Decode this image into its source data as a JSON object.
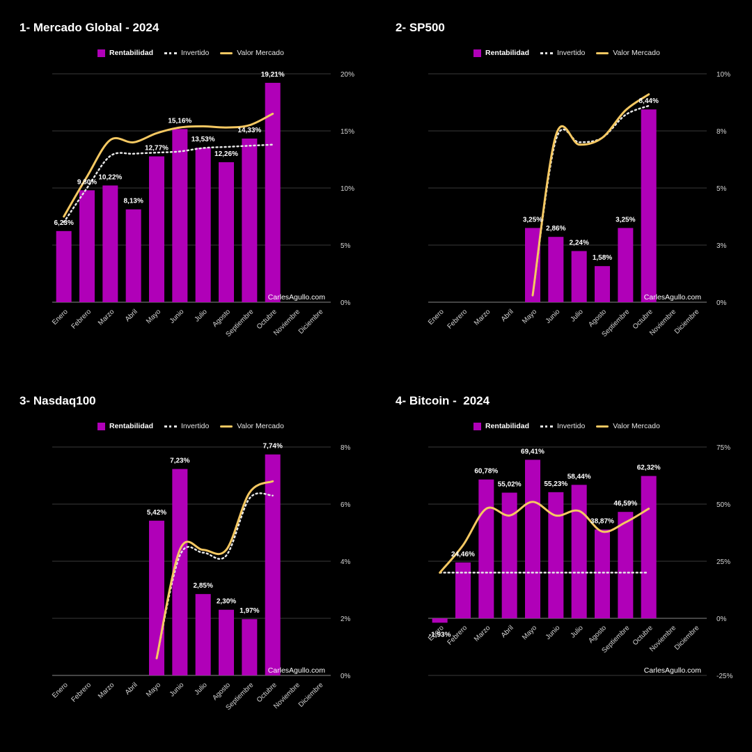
{
  "months": [
    "Enero",
    "Febrero",
    "Marzo",
    "Abril",
    "Mayo",
    "Junio",
    "Julio",
    "Agosto",
    "Septiembre",
    "Octubre",
    "Noviembre",
    "Diciembre"
  ],
  "colors": {
    "bar": "#b000b8",
    "market_line": "#f5c862",
    "invested_line": "#e6e6e6",
    "grid": "#3a3a3a",
    "text": "#ffffff",
    "axis_text": "#d6d6d6"
  },
  "charts": [
    {
      "id": "global",
      "title": "1- Mercado Global - 2024",
      "legend": {
        "bar": "Rentabilidad",
        "invested": "Invertido",
        "market": "Valor Mercado"
      },
      "watermark": "CarlesAgullo.com",
      "chart_data": {
        "type": "bar",
        "categories": [
          "Enero",
          "Febrero",
          "Marzo",
          "Abril",
          "Mayo",
          "Junio",
          "Julio",
          "Agosto",
          "Septiembre",
          "Octubre",
          "Noviembre",
          "Diciembre"
        ],
        "series": [
          {
            "name": "Rentabilidad",
            "values": [
              6.23,
              9.8,
              10.22,
              8.13,
              12.77,
              15.16,
              13.53,
              12.26,
              14.33,
              19.21,
              null,
              null
            ],
            "labels": [
              "6,23%",
              "9,80%",
              "10,22%",
              "8,13%",
              "12,77%",
              "15,16%",
              "13,53%",
              "12,26%",
              "14,33%",
              "19,21%",
              "",
              ""
            ]
          },
          {
            "name": "Invertido",
            "values": [
              7.0,
              10.0,
              12.8,
              13.0,
              13.1,
              13.2,
              13.5,
              13.6,
              13.7,
              13.8,
              null,
              null
            ]
          },
          {
            "name": "Valor Mercado",
            "values": [
              7.5,
              11.0,
              14.2,
              14.0,
              14.8,
              15.3,
              15.4,
              15.3,
              15.5,
              16.5,
              null,
              null
            ]
          }
        ],
        "ylim": [
          0,
          20
        ],
        "yticks": [
          0,
          5,
          10,
          15,
          20
        ],
        "ytick_labels": [
          "0%",
          "5%",
          "10%",
          "15%",
          "20%"
        ],
        "grid": true,
        "legend_position": "top"
      }
    },
    {
      "id": "sp500",
      "title": "2- SP500",
      "legend": {
        "bar": "Rentabilidad",
        "invested": "Invertido",
        "market": "Valor Mercado"
      },
      "watermark": "CarlesAgullo.com",
      "chart_data": {
        "type": "bar",
        "categories": [
          "Enero",
          "Febrero",
          "Marzo",
          "Abril",
          "Mayo",
          "Junio",
          "Julio",
          "Agosto",
          "Septiembre",
          "Octubre",
          "Noviembre",
          "Diciembre"
        ],
        "series": [
          {
            "name": "Rentabilidad",
            "values": [
              null,
              null,
              null,
              null,
              3.25,
              2.86,
              2.24,
              1.58,
              3.25,
              8.44,
              null,
              null
            ],
            "labels": [
              "",
              "",
              "",
              "",
              "3,25%",
              "2,86%",
              "2,24%",
              "1,58%",
              "3,25%",
              "8,44%",
              "",
              ""
            ]
          },
          {
            "name": "Invertido",
            "values": [
              null,
              null,
              null,
              null,
              0.3,
              7.1,
              7.0,
              7.2,
              8.2,
              8.6,
              null,
              null
            ]
          },
          {
            "name": "Valor Mercado",
            "values": [
              null,
              null,
              null,
              null,
              0.3,
              7.3,
              6.9,
              7.2,
              8.4,
              9.1,
              null,
              null
            ]
          }
        ],
        "ylim": [
          0,
          10
        ],
        "yticks": [
          0,
          2.5,
          5,
          7.5,
          10
        ],
        "ytick_labels": [
          "0%",
          "3%",
          "5%",
          "8%",
          "10%"
        ],
        "grid": true,
        "legend_position": "top"
      }
    },
    {
      "id": "nasdaq",
      "title": "3- Nasdaq100",
      "legend": {
        "bar": "Rentabilidad",
        "invested": "Invertido",
        "market": "Valor Mercado"
      },
      "watermark": "CarlesAgullo.com",
      "chart_data": {
        "type": "bar",
        "categories": [
          "Enero",
          "Febrero",
          "Marzo",
          "Abril",
          "Mayo",
          "Junio",
          "Julio",
          "Agosto",
          "Septiembre",
          "Octubre",
          "Noviembre",
          "Diciembre"
        ],
        "series": [
          {
            "name": "Rentabilidad",
            "values": [
              null,
              null,
              null,
              null,
              5.42,
              7.23,
              2.85,
              2.3,
              1.97,
              7.74,
              null,
              null
            ],
            "labels": [
              "",
              "",
              "",
              "",
              "5,42%",
              "7,23%",
              "2,85%",
              "2,30%",
              "1,97%",
              "7,74%",
              "",
              ""
            ]
          },
          {
            "name": "Invertido",
            "values": [
              null,
              null,
              null,
              null,
              0.6,
              4.2,
              4.3,
              4.2,
              6.2,
              6.3,
              null,
              null
            ]
          },
          {
            "name": "Valor Mercado",
            "values": [
              null,
              null,
              null,
              null,
              0.6,
              4.4,
              4.4,
              4.4,
              6.4,
              6.8,
              null,
              null
            ]
          }
        ],
        "ylim": [
          0,
          8
        ],
        "yticks": [
          0,
          2,
          4,
          6,
          8
        ],
        "ytick_labels": [
          "0%",
          "2%",
          "4%",
          "6%",
          "8%"
        ],
        "grid": true,
        "legend_position": "top"
      }
    },
    {
      "id": "bitcoin",
      "title": "4- Bitcoin -  2024",
      "legend": {
        "bar": "Rentabilidad",
        "invested": "Invertido",
        "market": "Valor Mercado"
      },
      "watermark": "CarlesAgullo.com",
      "chart_data": {
        "type": "bar",
        "categories": [
          "Enero",
          "Febrero",
          "Marzo",
          "Abril",
          "Mayo",
          "Junio",
          "Julio",
          "Agosto",
          "Septiembre",
          "Octubre",
          "Noviembre",
          "Diciembre"
        ],
        "series": [
          {
            "name": "Rentabilidad",
            "values": [
              -1.93,
              24.46,
              60.78,
              55.02,
              69.41,
              55.23,
              58.44,
              38.87,
              46.59,
              62.32,
              null,
              null
            ],
            "labels": [
              "-1,93%",
              "24,46%",
              "60,78%",
              "55,02%",
              "69,41%",
              "55,23%",
              "58,44%",
              "38,87%",
              "46,59%",
              "62,32%",
              "",
              ""
            ]
          },
          {
            "name": "Invertido",
            "values": [
              20,
              20,
              20,
              20,
              20,
              20,
              20,
              20,
              20,
              20,
              null,
              null
            ]
          },
          {
            "name": "Valor Mercado",
            "values": [
              20,
              32,
              48,
              45,
              51,
              45,
              47,
              38,
              42,
              48,
              null,
              null
            ]
          }
        ],
        "ylim": [
          -25,
          75
        ],
        "yticks": [
          -25,
          0,
          25,
          50,
          75
        ],
        "ytick_labels": [
          "-25%",
          "0%",
          "25%",
          "50%",
          "75%"
        ],
        "grid": true,
        "legend_position": "top"
      }
    }
  ]
}
